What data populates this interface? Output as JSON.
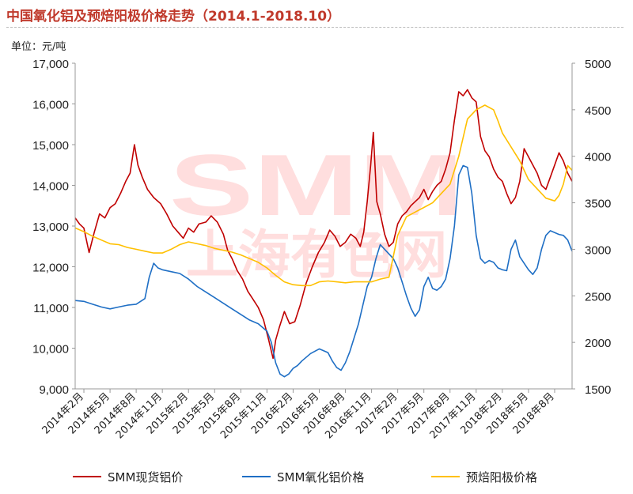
{
  "title": "中国氧化铝及预焙阳极价格走势（2014.1-2018.10）",
  "unit_label": "单位：元/吨",
  "watermark": {
    "line1": "SMM",
    "line2": "上海有色网"
  },
  "legend": [
    {
      "label": "SMM现货铝价",
      "color": "#c00000"
    },
    {
      "label": "SMM氧化铝价格",
      "color": "#1f6fc5"
    },
    {
      "label": "预焙阳极价格",
      "color": "#ffc000"
    }
  ],
  "chart_data": {
    "type": "line",
    "title": "中国氧化铝及预焙阳极价格走势（2014.1-2018.10）",
    "ylabel": "单位：元/吨",
    "x_range": [
      0,
      57
    ],
    "x_ticks": [
      {
        "t": 1,
        "label": "2014年2月"
      },
      {
        "t": 4,
        "label": "2014年5月"
      },
      {
        "t": 7,
        "label": "2014年8月"
      },
      {
        "t": 10,
        "label": "2014年11月"
      },
      {
        "t": 13,
        "label": "2015年2月"
      },
      {
        "t": 16,
        "label": "2015年5月"
      },
      {
        "t": 19,
        "label": "2015年8月"
      },
      {
        "t": 22,
        "label": "2015年11月"
      },
      {
        "t": 25,
        "label": "2016年2月"
      },
      {
        "t": 28,
        "label": "2016年5月"
      },
      {
        "t": 31,
        "label": "2016年8月"
      },
      {
        "t": 34,
        "label": "2016年11月"
      },
      {
        "t": 37,
        "label": "2017年2月"
      },
      {
        "t": 40,
        "label": "2017年5月"
      },
      {
        "t": 43,
        "label": "2017年8月"
      },
      {
        "t": 46,
        "label": "2017年11月"
      },
      {
        "t": 49,
        "label": "2018年2月"
      },
      {
        "t": 52,
        "label": "2018年5月"
      },
      {
        "t": 55,
        "label": "2018年8月"
      }
    ],
    "y_left": {
      "min": 9000,
      "max": 17000,
      "step": 1000,
      "tick_labels": [
        "9,000",
        "10,000",
        "11,000",
        "12,000",
        "13,000",
        "14,000",
        "15,000",
        "16,000",
        "17,000"
      ]
    },
    "y_right": {
      "min": 1500,
      "max": 5000,
      "step": 500,
      "tick_labels": [
        "1500",
        "2000",
        "2500",
        "3000",
        "3500",
        "4000",
        "4500",
        "5000"
      ]
    },
    "series": [
      {
        "name": "SMM现货铝价",
        "axis": "left",
        "color": "#c00000",
        "points": [
          [
            0,
            13200
          ],
          [
            0.5,
            13050
          ],
          [
            1,
            12950
          ],
          [
            1.6,
            12350
          ],
          [
            2.2,
            12850
          ],
          [
            2.8,
            13300
          ],
          [
            3.4,
            13200
          ],
          [
            4,
            13450
          ],
          [
            4.6,
            13550
          ],
          [
            5.2,
            13800
          ],
          [
            5.8,
            14100
          ],
          [
            6.3,
            14300
          ],
          [
            6.8,
            15000
          ],
          [
            7.2,
            14500
          ],
          [
            7.7,
            14200
          ],
          [
            8.3,
            13900
          ],
          [
            9,
            13700
          ],
          [
            9.8,
            13550
          ],
          [
            10.5,
            13300
          ],
          [
            11.2,
            13000
          ],
          [
            11.8,
            12850
          ],
          [
            12.4,
            12700
          ],
          [
            13,
            12950
          ],
          [
            13.6,
            12850
          ],
          [
            14.2,
            13050
          ],
          [
            15,
            13100
          ],
          [
            15.6,
            13250
          ],
          [
            16.3,
            13100
          ],
          [
            17,
            12800
          ],
          [
            17.5,
            12400
          ],
          [
            18,
            12200
          ],
          [
            18.6,
            11900
          ],
          [
            19.2,
            11700
          ],
          [
            19.8,
            11400
          ],
          [
            20.4,
            11200
          ],
          [
            21,
            11000
          ],
          [
            21.6,
            10700
          ],
          [
            22.2,
            10200
          ],
          [
            22.7,
            9750
          ],
          [
            23,
            10200
          ],
          [
            23.4,
            10500
          ],
          [
            24,
            10900
          ],
          [
            24.6,
            10600
          ],
          [
            25.2,
            10650
          ],
          [
            25.8,
            11050
          ],
          [
            26.5,
            11600
          ],
          [
            27.2,
            12000
          ],
          [
            27.9,
            12350
          ],
          [
            28.6,
            12600
          ],
          [
            29.2,
            12900
          ],
          [
            29.8,
            12750
          ],
          [
            30.4,
            12500
          ],
          [
            31,
            12600
          ],
          [
            31.6,
            12800
          ],
          [
            32.2,
            12700
          ],
          [
            32.7,
            12500
          ],
          [
            33.1,
            12850
          ],
          [
            33.5,
            13600
          ],
          [
            33.9,
            14500
          ],
          [
            34.2,
            15300
          ],
          [
            34.6,
            13600
          ],
          [
            35,
            13300
          ],
          [
            35.5,
            12800
          ],
          [
            36,
            12500
          ],
          [
            36.5,
            12600
          ],
          [
            37,
            13050
          ],
          [
            37.5,
            13250
          ],
          [
            38,
            13350
          ],
          [
            38.5,
            13500
          ],
          [
            39,
            13600
          ],
          [
            39.5,
            13700
          ],
          [
            40,
            13900
          ],
          [
            40.5,
            13650
          ],
          [
            41,
            13850
          ],
          [
            41.5,
            14000
          ],
          [
            42,
            14100
          ],
          [
            42.5,
            14400
          ],
          [
            43,
            14800
          ],
          [
            43.5,
            15600
          ],
          [
            44,
            16300
          ],
          [
            44.5,
            16200
          ],
          [
            45,
            16350
          ],
          [
            45.5,
            16150
          ],
          [
            46,
            16050
          ],
          [
            46.5,
            15200
          ],
          [
            47,
            14850
          ],
          [
            47.5,
            14700
          ],
          [
            48,
            14400
          ],
          [
            48.5,
            14200
          ],
          [
            49,
            14100
          ],
          [
            49.5,
            13800
          ],
          [
            50,
            13550
          ],
          [
            50.5,
            13700
          ],
          [
            51,
            14100
          ],
          [
            51.5,
            14900
          ],
          [
            52,
            14700
          ],
          [
            52.5,
            14500
          ],
          [
            53,
            14300
          ],
          [
            53.5,
            14000
          ],
          [
            54,
            13900
          ],
          [
            54.5,
            14200
          ],
          [
            55,
            14500
          ],
          [
            55.5,
            14800
          ],
          [
            56,
            14600
          ],
          [
            56.5,
            14300
          ],
          [
            57,
            14100
          ]
        ]
      },
      {
        "name": "SMM氧化铝价格",
        "axis": "right",
        "color": "#1f6fc5",
        "points": [
          [
            0,
            2450
          ],
          [
            1,
            2440
          ],
          [
            2,
            2410
          ],
          [
            3,
            2380
          ],
          [
            4,
            2360
          ],
          [
            5,
            2380
          ],
          [
            6,
            2400
          ],
          [
            7,
            2410
          ],
          [
            8,
            2470
          ],
          [
            8.5,
            2700
          ],
          [
            9,
            2850
          ],
          [
            9.5,
            2800
          ],
          [
            10,
            2780
          ],
          [
            11,
            2760
          ],
          [
            12,
            2740
          ],
          [
            13,
            2680
          ],
          [
            14,
            2600
          ],
          [
            15,
            2540
          ],
          [
            16,
            2480
          ],
          [
            17,
            2420
          ],
          [
            18,
            2360
          ],
          [
            19,
            2300
          ],
          [
            20,
            2240
          ],
          [
            21,
            2200
          ],
          [
            22,
            2120
          ],
          [
            22.5,
            2000
          ],
          [
            23,
            1780
          ],
          [
            23.5,
            1660
          ],
          [
            24,
            1630
          ],
          [
            24.5,
            1660
          ],
          [
            25,
            1720
          ],
          [
            25.5,
            1750
          ],
          [
            26,
            1800
          ],
          [
            27,
            1880
          ],
          [
            28,
            1930
          ],
          [
            29,
            1890
          ],
          [
            29.5,
            1800
          ],
          [
            30,
            1730
          ],
          [
            30.5,
            1700
          ],
          [
            31,
            1780
          ],
          [
            31.5,
            1900
          ],
          [
            32,
            2050
          ],
          [
            32.5,
            2200
          ],
          [
            33,
            2400
          ],
          [
            33.5,
            2600
          ],
          [
            34,
            2700
          ],
          [
            34.5,
            2900
          ],
          [
            35,
            3050
          ],
          [
            35.5,
            3000
          ],
          [
            36,
            2950
          ],
          [
            36.5,
            2900
          ],
          [
            37,
            2800
          ],
          [
            37.5,
            2650
          ],
          [
            38,
            2500
          ],
          [
            38.5,
            2370
          ],
          [
            39,
            2280
          ],
          [
            39.5,
            2350
          ],
          [
            40,
            2600
          ],
          [
            40.5,
            2700
          ],
          [
            41,
            2580
          ],
          [
            41.5,
            2560
          ],
          [
            42,
            2600
          ],
          [
            42.5,
            2680
          ],
          [
            43,
            2900
          ],
          [
            43.5,
            3250
          ],
          [
            44,
            3800
          ],
          [
            44.5,
            3900
          ],
          [
            45,
            3880
          ],
          [
            45.5,
            3600
          ],
          [
            46,
            3150
          ],
          [
            46.5,
            2900
          ],
          [
            47,
            2850
          ],
          [
            47.5,
            2880
          ],
          [
            48,
            2860
          ],
          [
            48.5,
            2800
          ],
          [
            49,
            2780
          ],
          [
            49.5,
            2770
          ],
          [
            50,
            3000
          ],
          [
            50.5,
            3100
          ],
          [
            51,
            2920
          ],
          [
            51.5,
            2850
          ],
          [
            52,
            2780
          ],
          [
            52.5,
            2730
          ],
          [
            53,
            2800
          ],
          [
            53.5,
            3000
          ],
          [
            54,
            3150
          ],
          [
            54.5,
            3200
          ],
          [
            55,
            3180
          ],
          [
            55.5,
            3160
          ],
          [
            56,
            3150
          ],
          [
            56.5,
            3100
          ],
          [
            57,
            2980
          ]
        ]
      },
      {
        "name": "预焙阳极价格",
        "axis": "right",
        "color": "#ffc000",
        "points": [
          [
            0,
            3230
          ],
          [
            1,
            3190
          ],
          [
            2,
            3140
          ],
          [
            3,
            3100
          ],
          [
            4,
            3060
          ],
          [
            5,
            3050
          ],
          [
            6,
            3020
          ],
          [
            7,
            3000
          ],
          [
            8,
            2980
          ],
          [
            9,
            2960
          ],
          [
            10,
            2960
          ],
          [
            11,
            3000
          ],
          [
            12,
            3050
          ],
          [
            13,
            3080
          ],
          [
            14,
            3060
          ],
          [
            15,
            3040
          ],
          [
            16,
            3010
          ],
          [
            17,
            2990
          ],
          [
            18,
            2970
          ],
          [
            19,
            2940
          ],
          [
            20,
            2900
          ],
          [
            21,
            2860
          ],
          [
            22,
            2800
          ],
          [
            23,
            2720
          ],
          [
            24,
            2650
          ],
          [
            25,
            2620
          ],
          [
            26,
            2610
          ],
          [
            27,
            2610
          ],
          [
            28,
            2650
          ],
          [
            29,
            2660
          ],
          [
            30,
            2650
          ],
          [
            31,
            2640
          ],
          [
            32,
            2650
          ],
          [
            33,
            2650
          ],
          [
            34,
            2650
          ],
          [
            35,
            2680
          ],
          [
            36,
            2700
          ],
          [
            37,
            3150
          ],
          [
            38,
            3350
          ],
          [
            39,
            3400
          ],
          [
            40,
            3450
          ],
          [
            41,
            3500
          ],
          [
            42,
            3600
          ],
          [
            43,
            3700
          ],
          [
            44,
            4000
          ],
          [
            45,
            4400
          ],
          [
            46,
            4500
          ],
          [
            47,
            4550
          ],
          [
            48,
            4500
          ],
          [
            48.5,
            4380
          ],
          [
            49,
            4250
          ],
          [
            50,
            4100
          ],
          [
            51,
            3950
          ],
          [
            52,
            3750
          ],
          [
            53,
            3650
          ],
          [
            54,
            3550
          ],
          [
            55,
            3520
          ],
          [
            55.5,
            3580
          ],
          [
            56,
            3700
          ],
          [
            56.5,
            3900
          ],
          [
            57,
            3850
          ]
        ]
      }
    ]
  }
}
